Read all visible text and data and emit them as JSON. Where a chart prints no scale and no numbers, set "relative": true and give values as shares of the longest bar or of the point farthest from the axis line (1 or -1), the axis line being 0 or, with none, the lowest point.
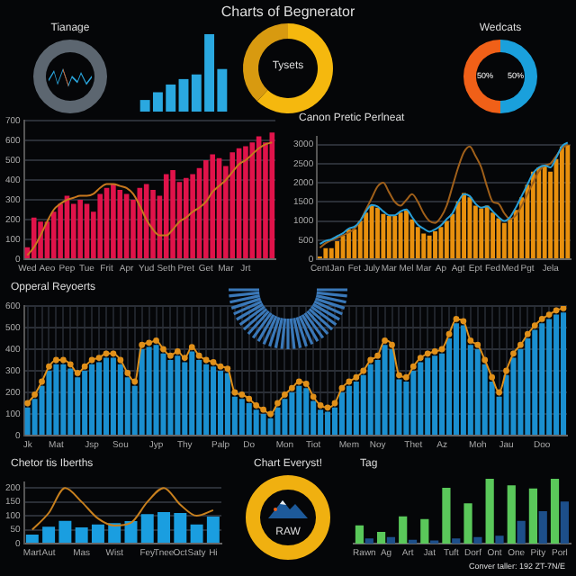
{
  "chart_data": [
    {
      "type": "other",
      "title": "Charts of Begnerator",
      "annotations": [
        "Conver taller: 192 ZT-7N/E"
      ]
    },
    {
      "type": "pie",
      "title": "Tianage",
      "categories": [
        null
      ],
      "values": [
        100
      ],
      "colors": [
        "#5c6670"
      ]
    },
    {
      "type": "bar",
      "relative": true,
      "categories": [
        null,
        null,
        null,
        null,
        null,
        null,
        null
      ],
      "series": [
        {
          "color": "#2aa8e0",
          "values": [
            0.15,
            0.25,
            0.35,
            0.42,
            0.48,
            1.0,
            0.55
          ]
        }
      ]
    },
    {
      "type": "donut",
      "categories": [
        null,
        null
      ],
      "values": [
        62,
        38
      ],
      "colors": [
        "#f5b80e",
        "#d89a10"
      ],
      "annotations": [
        "Tysets"
      ]
    },
    {
      "type": "donut",
      "title": "Wedcats",
      "categories": [
        null,
        null
      ],
      "values": [
        50,
        50
      ],
      "colors": [
        "#1aa0dc",
        "#f06018"
      ],
      "value_labels": [
        "50%",
        "50%"
      ]
    },
    {
      "type": "bar",
      "grid": "y",
      "ylim": [
        0,
        700
      ],
      "yticks": [
        0,
        100,
        200,
        300,
        400,
        500,
        600,
        700
      ],
      "categories": [
        "Wed",
        null,
        null,
        "Aeo",
        null,
        null,
        "Pep",
        null,
        null,
        "Tue",
        null,
        null,
        "Frit",
        null,
        null,
        "Apr",
        null,
        null,
        "Yud",
        null,
        null,
        "Seth",
        null,
        null,
        "Pret",
        null,
        null,
        "Get",
        null,
        null,
        "Mar",
        null,
        null,
        "Jrt",
        null,
        null,
        null,
        null
      ],
      "series": [
        {
          "type": "bar",
          "color": "#e0134a",
          "values": [
            60,
            210,
            190,
            190,
            240,
            280,
            320,
            280,
            300,
            280,
            240,
            330,
            360,
            380,
            350,
            330,
            300,
            360,
            380,
            350,
            320,
            430,
            450,
            390,
            410,
            430,
            460,
            500,
            530,
            510,
            470,
            540,
            560,
            570,
            590,
            620,
            590,
            640
          ]
        },
        {
          "type": "line",
          "color": "#c8781e",
          "values": [
            20,
            60,
            120,
            190,
            250,
            280,
            300,
            310,
            320,
            320,
            330,
            360,
            380,
            380,
            370,
            360,
            330,
            270,
            200,
            150,
            120,
            120,
            150,
            190,
            210,
            240,
            260,
            290,
            340,
            370,
            400,
            440,
            480,
            500,
            530,
            560,
            580,
            590
          ]
        }
      ]
    },
    {
      "type": "bar",
      "title": "Canon Pretic Perlneat",
      "grid": "y",
      "ylim": [
        0,
        3200
      ],
      "yticks": [
        0,
        500,
        1000,
        1500,
        2000,
        2500,
        3000
      ],
      "categories": [
        "Cent",
        null,
        null,
        "Jan",
        null,
        null,
        "Fet",
        null,
        null,
        "July",
        null,
        null,
        "Mar",
        null,
        null,
        "Mel",
        null,
        null,
        "Mar",
        null,
        null,
        "Ap",
        null,
        null,
        "Agt",
        null,
        null,
        "Ept",
        null,
        null,
        "Fed",
        null,
        null,
        "Med",
        null,
        null,
        "Pgt",
        null,
        null,
        null,
        "Jela",
        null,
        null,
        null
      ],
      "series": [
        {
          "type": "bar",
          "color": "#e8900e",
          "values": [
            70,
            290,
            290,
            470,
            620,
            780,
            780,
            1000,
            1220,
            1400,
            1350,
            1180,
            1130,
            1130,
            1220,
            1270,
            1040,
            840,
            670,
            620,
            730,
            840,
            1000,
            1180,
            1510,
            1730,
            1620,
            1400,
            1330,
            1400,
            1220,
            1070,
            950,
            1070,
            1290,
            1620,
            1950,
            2290,
            2400,
            2460,
            2290,
            2620,
            2950,
            2980
          ]
        },
        {
          "type": "line",
          "color": "#2aa0d8",
          "values": [
            400,
            480,
            520,
            600,
            680,
            800,
            850,
            1000,
            1250,
            1420,
            1380,
            1250,
            1150,
            1150,
            1250,
            1300,
            1100,
            900,
            800,
            720,
            780,
            880,
            1050,
            1200,
            1500,
            1700,
            1650,
            1450,
            1350,
            1380,
            1250,
            1100,
            1000,
            1100,
            1350,
            1650,
            1950,
            2250,
            2400,
            2450,
            2400,
            2650,
            2950,
            3050
          ]
        },
        {
          "type": "line",
          "color": "#a0601a",
          "values": [
            300,
            420,
            500,
            560,
            620,
            700,
            800,
            1000,
            1300,
            1600,
            1900,
            2000,
            1750,
            1500,
            1400,
            1550,
            1700,
            1500,
            1200,
            1000,
            950,
            1100,
            1400,
            1900,
            2400,
            2800,
            2950,
            2700,
            2400,
            1900,
            1500,
            1450,
            1200,
            1050,
            1150,
            1400,
            1700,
            2000,
            2300,
            2450,
            2500,
            2700,
            2900,
            3000
          ]
        }
      ]
    },
    {
      "type": "bar",
      "title": "Opperal Reyoerts",
      "grid": true,
      "ylim": [
        0,
        600
      ],
      "yticks": [
        0,
        100,
        200,
        300,
        400,
        500,
        600
      ],
      "categories": [
        "Jk",
        null,
        null,
        null,
        "Mat",
        null,
        null,
        null,
        null,
        "Jsp",
        null,
        null,
        null,
        "Sou",
        null,
        null,
        null,
        null,
        "Jyp",
        null,
        null,
        null,
        "Thy",
        null,
        null,
        null,
        null,
        "Palp",
        null,
        null,
        null,
        "Do",
        null,
        null,
        null,
        null,
        "Mon",
        null,
        null,
        null,
        "Tiot",
        null,
        null,
        null,
        null,
        "Mem",
        null,
        null,
        null,
        "Noy",
        null,
        null,
        null,
        null,
        "Thet",
        null,
        null,
        null,
        "Az",
        null,
        null,
        null,
        null,
        "Moh",
        null,
        null,
        null,
        "Jau",
        null,
        null,
        null,
        null,
        "Doo",
        null,
        null,
        null
      ],
      "series": [
        {
          "type": "bar",
          "color": "#1a8fd0",
          "values": [
            130,
            170,
            230,
            300,
            330,
            330,
            310,
            270,
            300,
            330,
            340,
            360,
            360,
            330,
            270,
            230,
            400,
            410,
            420,
            380,
            350,
            370,
            340,
            390,
            350,
            330,
            320,
            300,
            290,
            180,
            170,
            150,
            120,
            100,
            80,
            130,
            170,
            200,
            230,
            220,
            160,
            120,
            110,
            130,
            200,
            230,
            250,
            280,
            330,
            350,
            420,
            400,
            260,
            250,
            300,
            340,
            360,
            370,
            380,
            450,
            520,
            510,
            420,
            400,
            330,
            250,
            180,
            280,
            360,
            400,
            450,
            490,
            520,
            540,
            560,
            570
          ]
        },
        {
          "type": "line",
          "color": "#e0901a",
          "marker": "circle",
          "values": [
            150,
            190,
            250,
            320,
            350,
            350,
            330,
            290,
            320,
            350,
            360,
            380,
            380,
            350,
            290,
            250,
            420,
            430,
            440,
            400,
            370,
            390,
            360,
            410,
            370,
            350,
            340,
            320,
            310,
            200,
            190,
            170,
            140,
            120,
            100,
            150,
            190,
            220,
            250,
            240,
            180,
            140,
            130,
            150,
            220,
            250,
            270,
            300,
            350,
            370,
            440,
            420,
            280,
            270,
            320,
            360,
            380,
            390,
            400,
            470,
            540,
            530,
            440,
            420,
            350,
            270,
            200,
            300,
            380,
            420,
            470,
            510,
            540,
            560,
            580,
            590
          ]
        }
      ]
    },
    {
      "type": "bar",
      "title": "Chetor tis Iberths",
      "grid": "y",
      "ylim": [
        0,
        220
      ],
      "yticks": [
        0,
        50,
        100,
        150,
        200
      ],
      "categories": [
        "Mart",
        "Aut",
        null,
        "Mas",
        null,
        "Wist",
        null,
        "Fey",
        "Tnee",
        "Oct",
        "Saty",
        "Hi"
      ],
      "series": [
        {
          "type": "bar",
          "color": "#1a9ee0",
          "values": [
            32,
            61,
            82,
            58,
            69,
            74,
            81,
            106,
            113,
            110,
            69,
            97
          ]
        },
        {
          "type": "line",
          "color": "#c8801e",
          "values": [
            50,
            110,
            200,
            150,
            90,
            65,
            75,
            150,
            200,
            140,
            100,
            120
          ]
        }
      ]
    },
    {
      "type": "pie",
      "title": "Chart Everyst!",
      "categories": [
        null
      ],
      "values": [
        100
      ],
      "colors": [
        "#f0b010"
      ],
      "annotations": [
        "RAW"
      ]
    },
    {
      "type": "bar",
      "title": "Tag",
      "relative": true,
      "categories": [
        "Rawn",
        "Ag",
        "Art",
        "Jat",
        "Tuft",
        "Dorf",
        "Ont",
        "One",
        "Pity",
        "Porl"
      ],
      "series": [
        {
          "type": "bar",
          "color": "#5ac85a",
          "values": [
            0.28,
            0.18,
            0.42,
            0.38,
            0.86,
            0.62,
            1.0,
            0.9,
            0.85,
            1.0
          ]
        },
        {
          "type": "bar",
          "color": "#1d4f8a",
          "values": [
            0.08,
            0.1,
            0.06,
            0.05,
            0.08,
            0.1,
            0.12,
            0.35,
            0.5,
            0.65
          ]
        }
      ]
    }
  ]
}
